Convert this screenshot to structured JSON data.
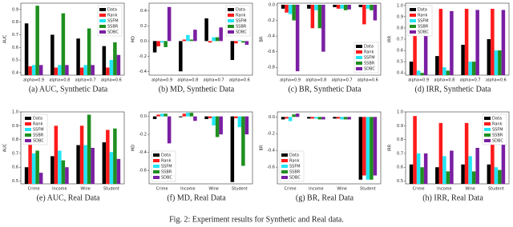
{
  "chart_data": [
    {
      "type": "bar",
      "caption": "(a) AUC, Synthetic Data",
      "ylabel": "AUC",
      "categories": [
        "alpha=0.9",
        "alpha=0.8",
        "alpha=0.7",
        "alpha=0.6"
      ],
      "ylim": [
        0.38,
        0.95
      ],
      "yticks": [
        0.4,
        0.5,
        0.6,
        0.7,
        0.8,
        0.9
      ],
      "legend": "upper right",
      "series": [
        {
          "name": "Data",
          "color": "#000000",
          "values": [
            0.79,
            0.7,
            0.67,
            0.61
          ]
        },
        {
          "name": "Rank",
          "color": "#ff1a1a",
          "values": [
            0.45,
            0.44,
            0.44,
            0.44
          ]
        },
        {
          "name": "SSFM",
          "color": "#22e5f5",
          "values": [
            0.46,
            0.46,
            0.46,
            0.5
          ]
        },
        {
          "name": "SSBR",
          "color": "#1f8f1f",
          "values": [
            0.93,
            0.87,
            0.75,
            0.64
          ]
        },
        {
          "name": "SDBC",
          "color": "#7a1fa2",
          "values": [
            0.46,
            0.46,
            0.46,
            0.54
          ]
        }
      ]
    },
    {
      "type": "bar",
      "caption": "(b) MD, Synthetic Data",
      "ylabel": "MD",
      "categories": [
        "alpha=0.9",
        "alpha=0.8",
        "alpha=0.7",
        "alpha=0.6"
      ],
      "ylim": [
        -0.45,
        0.5
      ],
      "yticks": [
        -0.4,
        -0.2,
        {
          "value": 0,
          "label": "0.0"
        },
        0.2,
        0.4
      ],
      "legend": "upper right",
      "series": [
        {
          "name": "Data",
          "color": "#000000",
          "values": [
            -0.15,
            -0.4,
            0.3,
            -0.25
          ]
        },
        {
          "name": "Rank",
          "color": "#ff1a1a",
          "values": [
            -0.07,
            0.02,
            -0.02,
            -0.03
          ]
        },
        {
          "name": "SSFM",
          "color": "#22e5f5",
          "values": [
            -0.02,
            0.08,
            0.05,
            0.01
          ]
        },
        {
          "name": "SSBR",
          "color": "#1f8f1f",
          "values": [
            -0.08,
            0.02,
            0.05,
            -0.02
          ]
        },
        {
          "name": "SDBC",
          "color": "#7a1fa2",
          "values": [
            0.45,
            0.15,
            0.18,
            -0.05
          ]
        }
      ]
    },
    {
      "type": "bar",
      "caption": "(c) BR, Synthetic Data",
      "ylabel": "BR",
      "categories": [
        "alpha=0.9",
        "alpha=0.8",
        "alpha=0.7",
        "alpha=0.6"
      ],
      "ylim": [
        -0.9,
        0.02
      ],
      "yticks": [
        {
          "value": 0,
          "label": "0.0"
        },
        -0.2,
        -0.4,
        -0.6,
        -0.8
      ],
      "legend": "lower right",
      "series": [
        {
          "name": "Data",
          "color": "#000000",
          "values": [
            -0.05,
            -0.05,
            -0.03,
            -0.03
          ]
        },
        {
          "name": "Rank",
          "color": "#ff1a1a",
          "values": [
            -0.1,
            -0.3,
            -0.05,
            -0.25
          ]
        },
        {
          "name": "SSFM",
          "color": "#22e5f5",
          "values": [
            -0.12,
            -0.07,
            -0.05,
            -0.05
          ]
        },
        {
          "name": "SSBR",
          "color": "#1f8f1f",
          "values": [
            -0.2,
            -0.3,
            -0.07,
            -0.07
          ]
        },
        {
          "name": "SDBC",
          "color": "#7a1fa2",
          "values": [
            -0.85,
            -0.6,
            -0.06,
            -0.2
          ]
        }
      ]
    },
    {
      "type": "bar",
      "caption": "(d) IRR, Synthetic Data",
      "ylabel": "IRR",
      "categories": [
        "alpha=0.9",
        "alpha=0.8",
        "alpha=0.7",
        "alpha=0.6"
      ],
      "ylim": [
        0.38,
        1.02
      ],
      "yticks": [
        0.4,
        0.5,
        0.6,
        0.7,
        0.8,
        0.9,
        {
          "value": 1,
          "label": "1.0"
        }
      ],
      "legend": "upper left",
      "series": [
        {
          "name": "Data",
          "color": "#000000",
          "values": [
            0.5,
            0.55,
            0.65,
            0.7
          ]
        },
        {
          "name": "Rank",
          "color": "#ff1a1a",
          "values": [
            0.97,
            0.97,
            0.97,
            0.97
          ]
        },
        {
          "name": "SSFM",
          "color": "#22e5f5",
          "values": [
            0.42,
            0.45,
            0.5,
            0.6
          ]
        },
        {
          "name": "SSBR",
          "color": "#1f8f1f",
          "values": [
            0.4,
            0.42,
            0.5,
            0.6
          ]
        },
        {
          "name": "SDBC",
          "color": "#7a1fa2",
          "values": [
            0.95,
            0.95,
            0.96,
            0.96
          ]
        }
      ]
    },
    {
      "type": "bar",
      "caption": "(e) AUC, Real Data",
      "ylabel": "AUC",
      "categories": [
        "Crime",
        "Income",
        "Wine",
        "Student"
      ],
      "ylim": [
        0.48,
        1.0
      ],
      "yticks": [
        0.5,
        0.6,
        0.7,
        0.8,
        0.9,
        {
          "value": 1,
          "label": "1.0"
        }
      ],
      "legend": "upper left",
      "series": [
        {
          "name": "Data",
          "color": "#000000",
          "values": [
            0.6,
            0.68,
            0.76,
            0.78
          ]
        },
        {
          "name": "Rank",
          "color": "#ff1a1a",
          "values": [
            0.86,
            0.9,
            0.9,
            0.87
          ]
        },
        {
          "name": "SSFM",
          "color": "#22e5f5",
          "values": [
            0.7,
            0.72,
            0.76,
            0.71
          ]
        },
        {
          "name": "SSBR",
          "color": "#1f8f1f",
          "values": [
            0.72,
            0.65,
            0.98,
            0.88
          ]
        },
        {
          "name": "SDBC",
          "color": "#7a1fa2",
          "values": [
            0.56,
            0.6,
            0.74,
            0.66
          ]
        }
      ]
    },
    {
      "type": "bar",
      "caption": "(f) MD, Real Data",
      "ylabel": "MD",
      "categories": [
        "Crime",
        "Income",
        "Wine",
        "Student"
      ],
      "ylim": [
        -0.75,
        0.05
      ],
      "yticks": [
        {
          "value": 0,
          "label": "0.0"
        },
        -0.2,
        -0.4,
        -0.6
      ],
      "legend": "lower left",
      "series": [
        {
          "name": "Data",
          "color": "#000000",
          "values": [
            -0.03,
            -0.01,
            -0.03,
            -0.73
          ]
        },
        {
          "name": "Rank",
          "color": "#ff1a1a",
          "values": [
            0.02,
            0.03,
            -0.02,
            -0.02
          ]
        },
        {
          "name": "SSFM",
          "color": "#22e5f5",
          "values": [
            0.03,
            0.04,
            -0.1,
            -0.12
          ]
        },
        {
          "name": "SSBR",
          "color": "#1f8f1f",
          "values": [
            0.03,
            0.04,
            -0.23,
            -0.55
          ]
        },
        {
          "name": "SDBC",
          "color": "#7a1fa2",
          "values": [
            -0.3,
            -0.05,
            -0.2,
            -0.2
          ]
        }
      ]
    },
    {
      "type": "bar",
      "caption": "(g) BR, Real Data",
      "ylabel": "BR",
      "categories": [
        "Crime",
        "Income",
        "Wine",
        "Student"
      ],
      "ylim": [
        -0.8,
        0.06
      ],
      "yticks": [
        {
          "value": 0,
          "label": "0.0"
        },
        -0.2,
        -0.4,
        -0.6
      ],
      "legend": "lower left",
      "series": [
        {
          "name": "Data",
          "color": "#000000",
          "values": [
            -0.03,
            -0.02,
            -0.02,
            -0.75
          ]
        },
        {
          "name": "Rank",
          "color": "#ff1a1a",
          "values": [
            -0.02,
            -0.02,
            -0.02,
            -0.7
          ]
        },
        {
          "name": "SSFM",
          "color": "#22e5f5",
          "values": [
            -0.05,
            -0.02,
            -0.03,
            -0.75
          ]
        },
        {
          "name": "SSBR",
          "color": "#1f8f1f",
          "values": [
            0.03,
            -0.03,
            -0.03,
            -0.75
          ]
        },
        {
          "name": "SDBC",
          "color": "#7a1fa2",
          "values": [
            0.04,
            -0.03,
            -0.03,
            -0.7
          ]
        }
      ]
    },
    {
      "type": "bar",
      "caption": "(h) IRR, Real Data",
      "ylabel": "IRR",
      "categories": [
        "Crime",
        "Income",
        "Wine",
        "Student"
      ],
      "ylim": [
        0.48,
        1.0
      ],
      "yticks": [
        0.5,
        0.6,
        0.7,
        0.8,
        0.9,
        {
          "value": 1,
          "label": "1.0"
        }
      ],
      "legend": "upper right",
      "series": [
        {
          "name": "Data",
          "color": "#000000",
          "values": [
            0.62,
            0.6,
            0.62,
            0.62
          ]
        },
        {
          "name": "Rank",
          "color": "#ff1a1a",
          "values": [
            0.97,
            0.92,
            0.92,
            0.82
          ]
        },
        {
          "name": "SSFM",
          "color": "#22e5f5",
          "values": [
            0.7,
            0.68,
            0.68,
            0.6
          ]
        },
        {
          "name": "SSBR",
          "color": "#1f8f1f",
          "values": [
            0.6,
            0.57,
            0.57,
            0.58
          ]
        },
        {
          "name": "SDBC",
          "color": "#7a1fa2",
          "values": [
            0.7,
            0.72,
            0.74,
            0.98
          ]
        }
      ]
    }
  ],
  "figure_caption": "Fig. 2: Experiment results for Synthetic and Real data."
}
